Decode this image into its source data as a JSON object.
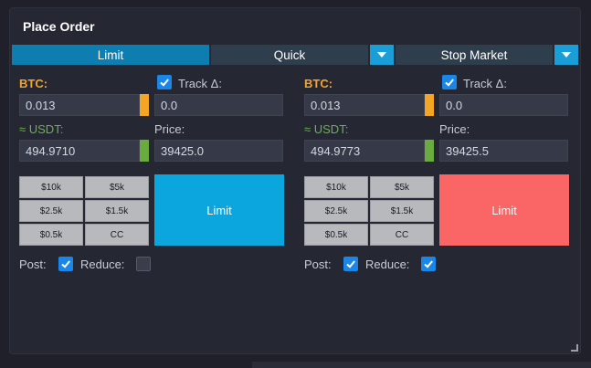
{
  "title": "Place Order",
  "tabs": [
    {
      "label": "Limit",
      "active": true
    },
    {
      "label": "Quick",
      "active": false
    },
    {
      "label": "Stop Market",
      "active": false
    }
  ],
  "colors": {
    "buy": "#0aa6dd",
    "sell": "#fa6666",
    "btc_swatch": "#f5a524",
    "usdt_swatch": "#6aab3f"
  },
  "left": {
    "btc_label": "BTC:",
    "btc_value": "0.013",
    "track_label": "Track Δ:",
    "track_checked": true,
    "track_value": "0.0",
    "usdt_label": "≈ USDT:",
    "usdt_value": "494.9710",
    "price_label": "Price:",
    "price_value": "39425.0",
    "quick": [
      "$10k",
      "$5k",
      "$2.5k",
      "$1.5k",
      "$0.5k",
      "CC"
    ],
    "action": "Limit",
    "post_label": "Post:",
    "post_checked": true,
    "reduce_label": "Reduce:",
    "reduce_checked": false
  },
  "right": {
    "btc_label": "BTC:",
    "btc_value": "0.013",
    "track_label": "Track Δ:",
    "track_checked": true,
    "track_value": "0.0",
    "usdt_label": "≈ USDT:",
    "usdt_value": "494.9773",
    "price_label": "Price:",
    "price_value": "39425.5",
    "quick": [
      "$10k",
      "$5k",
      "$2.5k",
      "$1.5k",
      "$0.5k",
      "CC"
    ],
    "action": "Limit",
    "post_label": "Post:",
    "post_checked": true,
    "reduce_label": "Reduce:",
    "reduce_checked": true
  }
}
